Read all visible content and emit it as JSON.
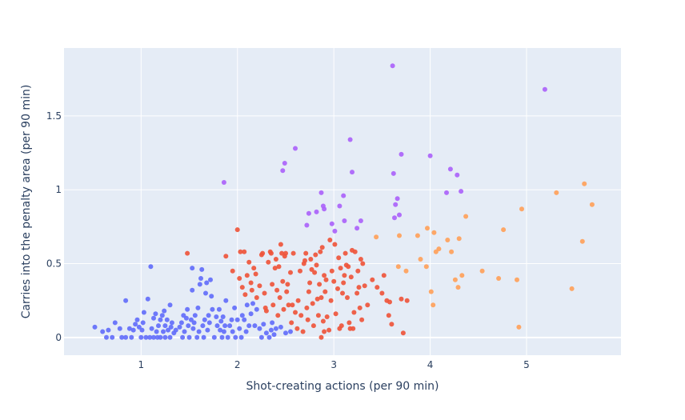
{
  "chart_data": {
    "type": "scatter",
    "xlabel": "Shot-creating actions (per 90 min)",
    "ylabel": "Carries into the penalty area (per 90 min)",
    "xlim": [
      0.2,
      5.98
    ],
    "ylim": [
      -0.12,
      1.96
    ],
    "x_ticks": [
      {
        "value": 1,
        "label": "1"
      },
      {
        "value": 2,
        "label": "2"
      },
      {
        "value": 3,
        "label": "3"
      },
      {
        "value": 4,
        "label": "4"
      },
      {
        "value": 5,
        "label": "5"
      }
    ],
    "y_ticks": [
      {
        "value": 0,
        "label": "0"
      },
      {
        "value": 0.5,
        "label": "0.5"
      },
      {
        "value": 1,
        "label": "1"
      },
      {
        "value": 1.5,
        "label": "1.5"
      }
    ],
    "grid": true,
    "legend": "none",
    "plot_background": "#e5ecf6",
    "series": [
      {
        "color": "#636efa",
        "points": [
          [
            0.52,
            0.07
          ],
          [
            0.6,
            0.04
          ],
          [
            0.64,
            0.0
          ],
          [
            0.66,
            0.05
          ],
          [
            0.7,
            0.0
          ],
          [
            0.73,
            0.1
          ],
          [
            0.78,
            0.06
          ],
          [
            0.8,
            0.0
          ],
          [
            0.84,
            0.25
          ],
          [
            0.84,
            0.0
          ],
          [
            0.88,
            0.06
          ],
          [
            0.9,
            0.0
          ],
          [
            0.92,
            0.05
          ],
          [
            0.94,
            0.09
          ],
          [
            0.96,
            0.12
          ],
          [
            0.98,
            0.07
          ],
          [
            1.0,
            0.0
          ],
          [
            1.01,
            0.05
          ],
          [
            1.02,
            0.1
          ],
          [
            1.03,
            0.17
          ],
          [
            1.05,
            0.0
          ],
          [
            1.07,
            0.26
          ],
          [
            1.09,
            0.0
          ],
          [
            1.1,
            0.48
          ],
          [
            1.11,
            0.06
          ],
          [
            1.13,
            0.13
          ],
          [
            1.13,
            0.0
          ],
          [
            1.15,
            0.16
          ],
          [
            1.16,
            0.04
          ],
          [
            1.17,
            0.0
          ],
          [
            1.18,
            0.08
          ],
          [
            1.2,
            0.12
          ],
          [
            1.2,
            0.0
          ],
          [
            1.22,
            0.15
          ],
          [
            1.23,
            0.04
          ],
          [
            1.24,
            0.18
          ],
          [
            1.25,
            0.08
          ],
          [
            1.25,
            0.0
          ],
          [
            1.27,
            0.12
          ],
          [
            1.28,
            0.05
          ],
          [
            1.3,
            0.22
          ],
          [
            1.3,
            0.0
          ],
          [
            1.31,
            0.07
          ],
          [
            1.32,
            0.1
          ],
          [
            1.34,
            0.03
          ],
          [
            1.36,
            0.05
          ],
          [
            1.4,
            0.07
          ],
          [
            1.42,
            0.1
          ],
          [
            1.43,
            0.0
          ],
          [
            1.44,
            0.15
          ],
          [
            1.45,
            0.04
          ],
          [
            1.47,
            0.13
          ],
          [
            1.48,
            0.19
          ],
          [
            1.49,
            0.08
          ],
          [
            1.5,
            0.0
          ],
          [
            1.52,
            0.12
          ],
          [
            1.53,
            0.32
          ],
          [
            1.53,
            0.47
          ],
          [
            1.54,
            0.06
          ],
          [
            1.55,
            0.1
          ],
          [
            1.56,
            0.15
          ],
          [
            1.58,
            0.0
          ],
          [
            1.59,
            0.2
          ],
          [
            1.6,
            0.04
          ],
          [
            1.61,
            0.36
          ],
          [
            1.62,
            0.4
          ],
          [
            1.63,
            0.46
          ],
          [
            1.64,
            0.08
          ],
          [
            1.65,
            0.0
          ],
          [
            1.66,
            0.12
          ],
          [
            1.67,
            0.3
          ],
          [
            1.68,
            0.37
          ],
          [
            1.69,
            0.05
          ],
          [
            1.7,
            0.15
          ],
          [
            1.71,
            0.1
          ],
          [
            1.72,
            0.39
          ],
          [
            1.73,
            0.28
          ],
          [
            1.74,
            0.19
          ],
          [
            1.76,
            0.0
          ],
          [
            1.78,
            0.14
          ],
          [
            1.79,
            0.08
          ],
          [
            1.81,
            0.19
          ],
          [
            1.82,
            0.05
          ],
          [
            1.83,
            0.11
          ],
          [
            1.84,
            0.0
          ],
          [
            1.85,
            0.14
          ],
          [
            1.86,
            0.04
          ],
          [
            1.87,
            0.08
          ],
          [
            1.88,
            0.25
          ],
          [
            1.9,
            0.0
          ],
          [
            1.92,
            0.08
          ],
          [
            1.94,
            0.12
          ],
          [
            1.95,
            0.04
          ],
          [
            1.97,
            0.2
          ],
          [
            1.98,
            0.0
          ],
          [
            2.0,
            0.12
          ],
          [
            2.02,
            0.06
          ],
          [
            2.04,
            0.0
          ],
          [
            2.05,
            0.15
          ],
          [
            2.07,
            0.12
          ],
          [
            2.09,
            0.04
          ],
          [
            2.1,
            0.22
          ],
          [
            2.12,
            0.08
          ],
          [
            2.14,
            0.16
          ],
          [
            2.16,
            0.23
          ],
          [
            2.18,
            0.08
          ],
          [
            2.2,
            0.19
          ],
          [
            2.23,
            0.06
          ],
          [
            2.25,
            0.0
          ],
          [
            2.27,
            0.09
          ],
          [
            2.3,
            0.03
          ],
          [
            2.33,
            0.0
          ],
          [
            2.35,
            0.05
          ],
          [
            2.36,
            0.1
          ],
          [
            2.38,
            0.02
          ],
          [
            2.4,
            0.06
          ],
          [
            2.45,
            0.07
          ],
          [
            2.5,
            0.03
          ],
          [
            2.55,
            0.04
          ]
        ]
      },
      {
        "color": "#ef553b",
        "points": [
          [
            1.48,
            0.57
          ],
          [
            1.88,
            0.55
          ],
          [
            1.95,
            0.45
          ],
          [
            2.0,
            0.73
          ],
          [
            2.02,
            0.4
          ],
          [
            2.03,
            0.58
          ],
          [
            2.05,
            0.34
          ],
          [
            2.07,
            0.58
          ],
          [
            2.08,
            0.29
          ],
          [
            2.1,
            0.42
          ],
          [
            2.12,
            0.51
          ],
          [
            2.14,
            0.37
          ],
          [
            2.15,
            0.32
          ],
          [
            2.17,
            0.47
          ],
          [
            2.19,
            0.43
          ],
          [
            2.2,
            0.27
          ],
          [
            2.23,
            0.35
          ],
          [
            2.25,
            0.56
          ],
          [
            2.26,
            0.57
          ],
          [
            2.28,
            0.3
          ],
          [
            2.29,
            0.2
          ],
          [
            2.3,
            0.18
          ],
          [
            2.32,
            0.51
          ],
          [
            2.34,
            0.58
          ],
          [
            2.35,
            0.57
          ],
          [
            2.36,
            0.36
          ],
          [
            2.37,
            0.22
          ],
          [
            2.39,
            0.47
          ],
          [
            2.4,
            0.53
          ],
          [
            2.41,
            0.32
          ],
          [
            2.42,
            0.15
          ],
          [
            2.43,
            0.48
          ],
          [
            2.44,
            0.27
          ],
          [
            2.45,
            0.63
          ],
          [
            2.46,
            0.57
          ],
          [
            2.47,
            0.38
          ],
          [
            2.48,
            0.19
          ],
          [
            2.49,
            0.55
          ],
          [
            2.5,
            0.57
          ],
          [
            2.51,
            0.31
          ],
          [
            2.52,
            0.36
          ],
          [
            2.53,
            0.22
          ],
          [
            2.55,
            0.44
          ],
          [
            2.56,
            0.1
          ],
          [
            2.57,
            0.22
          ],
          [
            2.58,
            0.57
          ],
          [
            2.6,
            0.17
          ],
          [
            2.62,
            0.06
          ],
          [
            2.63,
            0.25
          ],
          [
            2.65,
            0.45
          ],
          [
            2.66,
            0.15
          ],
          [
            2.68,
            0.04
          ],
          [
            2.69,
            0.5
          ],
          [
            2.7,
            0.52
          ],
          [
            2.71,
            0.57
          ],
          [
            2.72,
            0.2
          ],
          [
            2.73,
            0.12
          ],
          [
            2.74,
            0.31
          ],
          [
            2.75,
            0.37
          ],
          [
            2.76,
            0.53
          ],
          [
            2.77,
            0.46
          ],
          [
            2.78,
            0.23
          ],
          [
            2.79,
            0.08
          ],
          [
            2.8,
            0.44
          ],
          [
            2.81,
            0.56
          ],
          [
            2.82,
            0.49
          ],
          [
            2.83,
            0.26
          ],
          [
            2.84,
            0.15
          ],
          [
            2.85,
            0.36
          ],
          [
            2.86,
            0.58
          ],
          [
            2.87,
            0.27
          ],
          [
            2.87,
            0.0
          ],
          [
            2.88,
            0.61
          ],
          [
            2.89,
            0.11
          ],
          [
            2.9,
            0.42
          ],
          [
            2.9,
            0.04
          ],
          [
            2.91,
            0.31
          ],
          [
            2.92,
            0.39
          ],
          [
            2.93,
            0.14
          ],
          [
            2.95,
            0.05
          ],
          [
            2.96,
            0.66
          ],
          [
            2.97,
            0.25
          ],
          [
            2.98,
            0.45
          ],
          [
            3.0,
            0.38
          ],
          [
            3.01,
            0.63
          ],
          [
            3.02,
            0.16
          ],
          [
            3.04,
            0.33
          ],
          [
            3.05,
            0.54
          ],
          [
            3.06,
            0.06
          ],
          [
            3.07,
            0.47
          ],
          [
            3.08,
            0.08
          ],
          [
            3.09,
            0.3
          ],
          [
            3.1,
            0.37
          ],
          [
            3.11,
            0.42
          ],
          [
            3.12,
            0.57
          ],
          [
            3.13,
            0.49
          ],
          [
            3.14,
            0.27
          ],
          [
            3.15,
            0.48
          ],
          [
            3.16,
            0.1
          ],
          [
            3.17,
            0.06
          ],
          [
            3.18,
            0.41
          ],
          [
            3.19,
            0.59
          ],
          [
            3.2,
            0.06
          ],
          [
            3.21,
            0.17
          ],
          [
            3.22,
            0.58
          ],
          [
            3.24,
            0.3
          ],
          [
            3.25,
            0.45
          ],
          [
            3.26,
            0.34
          ],
          [
            3.27,
            0.2
          ],
          [
            3.28,
            0.53
          ],
          [
            3.29,
            0.12
          ],
          [
            3.3,
            0.5
          ],
          [
            3.32,
            0.35
          ],
          [
            3.35,
            0.22
          ],
          [
            3.4,
            0.39
          ],
          [
            3.45,
            0.34
          ],
          [
            3.5,
            0.3
          ],
          [
            3.52,
            0.42
          ],
          [
            3.55,
            0.25
          ],
          [
            3.57,
            0.15
          ],
          [
            3.58,
            0.24
          ],
          [
            3.6,
            0.09
          ],
          [
            3.7,
            0.26
          ],
          [
            3.72,
            0.03
          ],
          [
            3.76,
            0.25
          ]
        ]
      },
      {
        "color": "#ab63fa",
        "points": [
          [
            1.86,
            1.05
          ],
          [
            2.47,
            1.13
          ],
          [
            2.49,
            1.18
          ],
          [
            2.6,
            1.28
          ],
          [
            2.72,
            0.76
          ],
          [
            2.74,
            0.84
          ],
          [
            2.82,
            0.85
          ],
          [
            2.87,
            0.98
          ],
          [
            2.89,
            0.89
          ],
          [
            2.9,
            0.87
          ],
          [
            2.98,
            0.77
          ],
          [
            3.01,
            0.72
          ],
          [
            3.06,
            0.89
          ],
          [
            3.1,
            0.96
          ],
          [
            3.11,
            0.79
          ],
          [
            3.17,
            1.34
          ],
          [
            3.19,
            1.12
          ],
          [
            3.24,
            0.74
          ],
          [
            3.28,
            0.79
          ],
          [
            3.61,
            1.84
          ],
          [
            3.62,
            1.11
          ],
          [
            3.63,
            0.81
          ],
          [
            3.64,
            0.9
          ],
          [
            3.66,
            0.94
          ],
          [
            3.68,
            0.83
          ],
          [
            3.7,
            1.24
          ],
          [
            4.0,
            1.23
          ],
          [
            4.17,
            0.98
          ],
          [
            4.21,
            1.14
          ],
          [
            4.28,
            1.1
          ],
          [
            4.32,
            0.99
          ],
          [
            5.19,
            1.68
          ]
        ]
      },
      {
        "color": "#ffa15a",
        "points": [
          [
            3.44,
            0.68
          ],
          [
            3.67,
            0.48
          ],
          [
            3.68,
            0.69
          ],
          [
            3.75,
            0.45
          ],
          [
            3.87,
            0.69
          ],
          [
            3.9,
            0.53
          ],
          [
            3.96,
            0.48
          ],
          [
            3.97,
            0.74
          ],
          [
            4.01,
            0.31
          ],
          [
            4.03,
            0.22
          ],
          [
            4.04,
            0.71
          ],
          [
            4.06,
            0.58
          ],
          [
            4.09,
            0.6
          ],
          [
            4.18,
            0.66
          ],
          [
            4.22,
            0.58
          ],
          [
            4.26,
            0.39
          ],
          [
            4.29,
            0.34
          ],
          [
            4.3,
            0.67
          ],
          [
            4.33,
            0.42
          ],
          [
            4.37,
            0.82
          ],
          [
            4.54,
            0.45
          ],
          [
            4.71,
            0.4
          ],
          [
            4.76,
            0.73
          ],
          [
            4.9,
            0.39
          ],
          [
            4.92,
            0.07
          ],
          [
            4.95,
            0.87
          ],
          [
            5.31,
            0.98
          ],
          [
            5.47,
            0.33
          ],
          [
            5.58,
            0.65
          ],
          [
            5.6,
            1.04
          ],
          [
            5.68,
            0.9
          ]
        ]
      }
    ]
  }
}
